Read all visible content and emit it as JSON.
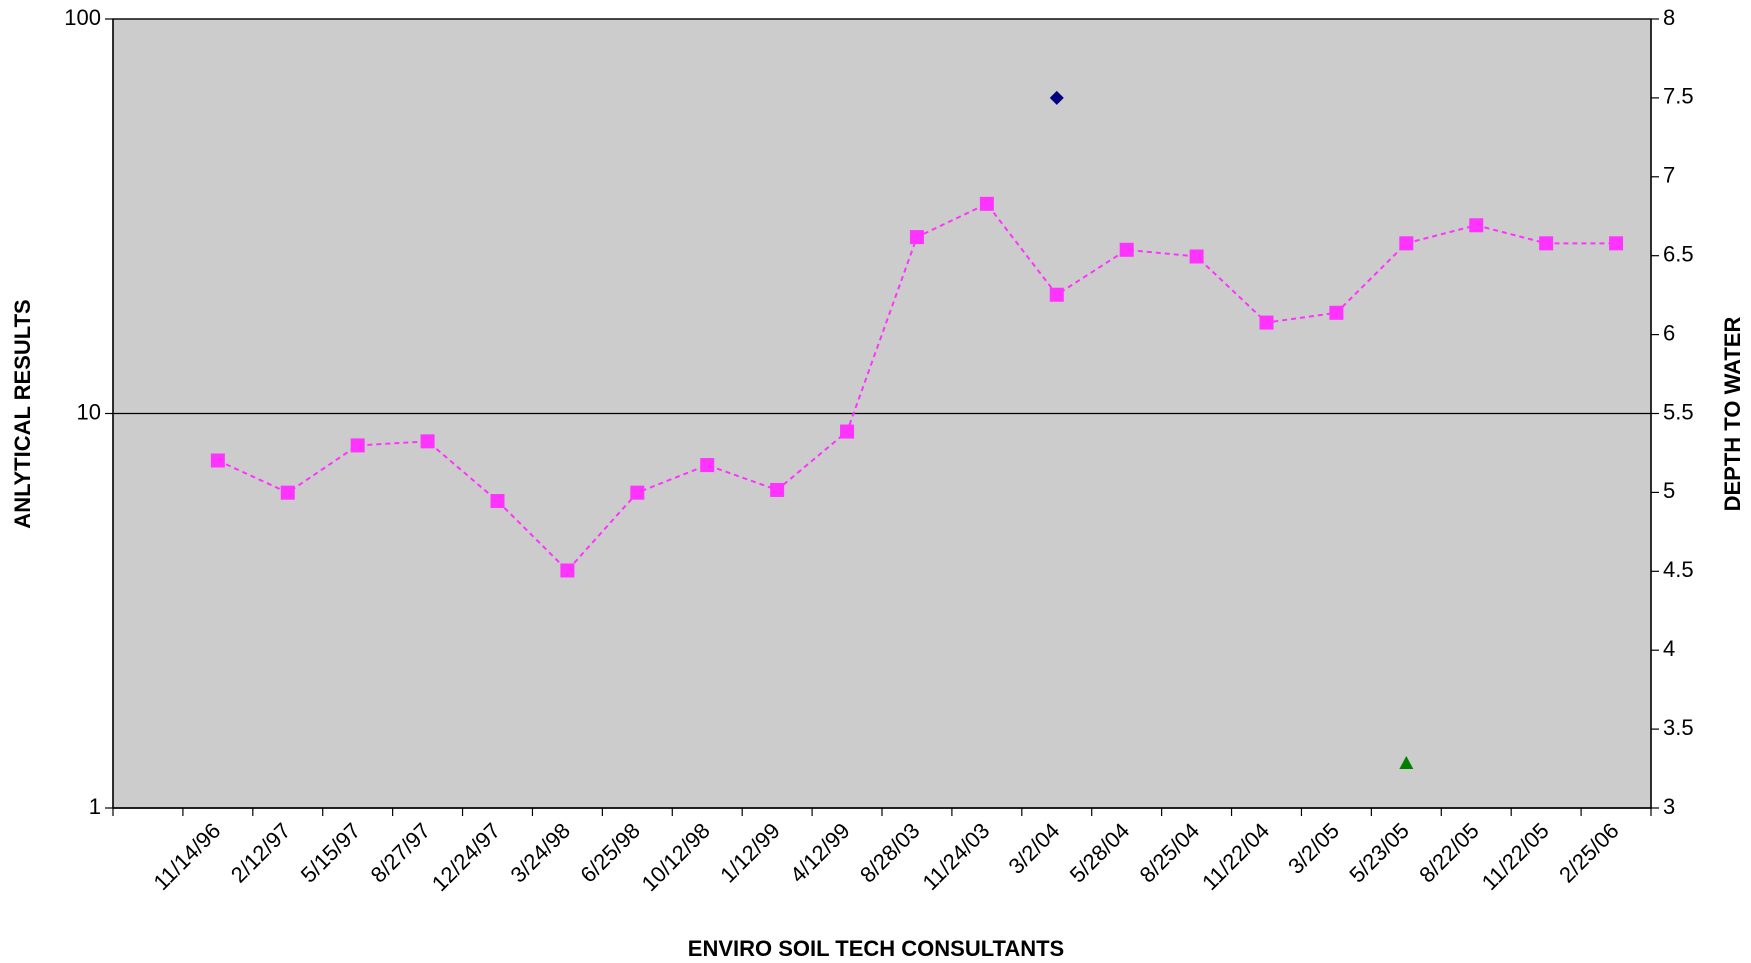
{
  "chart_data": {
    "type": "line",
    "x_label": "ENVIRO SOIL TECH CONSULTANTS",
    "y_label": "ANLYTICAL RESULTS",
    "y2_label": "DEPTH TO WATER",
    "categories": [
      null,
      "11/14/96",
      "2/12/97",
      "5/15/97",
      "8/27/97",
      "12/24/97",
      "3/24/98",
      "6/25/98",
      "10/12/98",
      "1/12/99",
      "4/12/99",
      "8/28/03",
      "11/24/03",
      "3/2/04",
      "5/28/04",
      "8/25/04",
      "11/22/04",
      "3/2/05",
      "5/23/05",
      "8/22/05",
      "11/22/05",
      "2/25/06"
    ],
    "ylim": [
      1,
      100
    ],
    "yticks": [
      1,
      10,
      100
    ],
    "ylog": true,
    "y2lim": [
      3,
      8
    ],
    "y2ticks": [
      3,
      3.5,
      4,
      4.5,
      5,
      5.5,
      6,
      6.5,
      7,
      7.5,
      8
    ],
    "grid": true,
    "background": "#cccccc",
    "series": [
      {
        "color": "#ff33ff",
        "marker": "square",
        "line": "dashed",
        "values": [
          null,
          7.6,
          6.3,
          8.3,
          8.5,
          6.0,
          4.0,
          6.3,
          7.4,
          6.4,
          9.0,
          28,
          34,
          20,
          26,
          25,
          17,
          18,
          27,
          30,
          27,
          27
        ]
      },
      {
        "color": "#000080",
        "marker": "diamond",
        "axis": "y2",
        "values": [
          null,
          null,
          null,
          null,
          null,
          null,
          null,
          null,
          null,
          null,
          null,
          null,
          null,
          7.5,
          null,
          null,
          null,
          null,
          null,
          null,
          null,
          null
        ]
      },
      {
        "color": "#008000",
        "marker": "triangle",
        "values": [
          null,
          null,
          null,
          null,
          null,
          null,
          null,
          null,
          null,
          null,
          null,
          null,
          null,
          null,
          null,
          null,
          null,
          null,
          1.3,
          null,
          null,
          null
        ]
      }
    ]
  }
}
